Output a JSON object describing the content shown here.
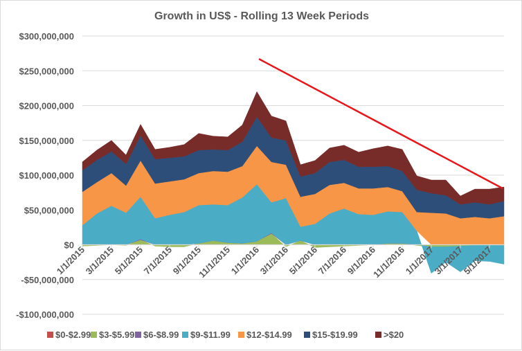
{
  "chart_data": {
    "type": "area",
    "stacked": true,
    "title": "Growth in US$ - Rolling 13 Week Periods",
    "xlabel": "",
    "ylabel": "",
    "ylim": [
      -100000000,
      300000000
    ],
    "y_ticks": [
      300000000,
      250000000,
      200000000,
      150000000,
      100000000,
      50000000,
      0,
      -50000000,
      -100000000
    ],
    "y_tick_labels": [
      "$300,000,000",
      "$250,000,000",
      "$200,000,000",
      "$150,000,000",
      "$100,000,000",
      "$50,000,000",
      "$0",
      "-$50,000,000",
      "-$100,000,000"
    ],
    "x_tick_labels": [
      "1/1/2015",
      "3/1/2015",
      "5/1/2015",
      "7/1/2015",
      "9/1/2015",
      "11/1/2015",
      "1/1/2016",
      "3/1/2016",
      "5/1/2016",
      "7/1/2016",
      "9/1/2016",
      "11/1/2016",
      "1/1/2017",
      "3/1/2017",
      "5/1/2017"
    ],
    "x": [
      "1/2015",
      "2/2015",
      "3/2015",
      "4/2015",
      "5/2015",
      "6/2015",
      "7/2015",
      "8/2015",
      "9/2015",
      "10/2015",
      "11/2015",
      "12/2015",
      "1/2016",
      "2/2016",
      "3/2016",
      "4/2016",
      "5/2016",
      "6/2016",
      "7/2016",
      "8/2016",
      "9/2016",
      "10/2016",
      "11/2016",
      "12/2016",
      "1/2017",
      "2/2017",
      "3/2017",
      "4/2017",
      "5/2017",
      "6/2017"
    ],
    "grid": true,
    "legend_position": "bottom",
    "series": [
      {
        "name": "$0-$2.99",
        "color": "#C0504D",
        "values": [
          0,
          0,
          0,
          0,
          0,
          0,
          0,
          0,
          0,
          0,
          0,
          0,
          0,
          0,
          0,
          0,
          0,
          0,
          0,
          0,
          0,
          0,
          0,
          0,
          0,
          0,
          0,
          0,
          0,
          0
        ]
      },
      {
        "name": "$3-$5.99",
        "color": "#9BBB59",
        "values": [
          -2000000,
          -1000000,
          0,
          -1000000,
          7000000,
          -2000000,
          -3000000,
          -3000000,
          2000000,
          6000000,
          3000000,
          2000000,
          5000000,
          16000000,
          -3000000,
          6000000,
          -4000000,
          -3000000,
          -2000000,
          -1000000,
          0,
          2000000,
          2000000,
          -1000000,
          -3000000,
          -3000000,
          -2000000,
          -1000000,
          -1000000,
          -1000000
        ]
      },
      {
        "name": "$6-$8.99",
        "color": "#8064A2",
        "values": [
          0,
          0,
          0,
          0,
          1000000,
          0,
          0,
          0,
          0,
          0,
          0,
          0,
          0,
          1000000,
          0,
          0,
          0,
          0,
          0,
          0,
          0,
          0,
          0,
          0,
          0,
          0,
          0,
          0,
          0,
          0
        ]
      },
      {
        "name": "$9-$11.99",
        "color": "#4BACC6",
        "values": [
          28000000,
          45000000,
          56000000,
          46000000,
          61000000,
          38000000,
          43000000,
          47000000,
          55000000,
          52000000,
          54000000,
          66000000,
          82000000,
          44000000,
          67000000,
          20000000,
          30000000,
          45000000,
          52000000,
          44000000,
          43000000,
          46000000,
          45000000,
          20000000,
          -38000000,
          -22000000,
          -37000000,
          -22000000,
          -23000000,
          -27000000
        ]
      },
      {
        "name": "$12-$14.99",
        "color": "#F79646",
        "values": [
          48000000,
          45000000,
          47000000,
          39000000,
          52000000,
          50000000,
          48000000,
          47000000,
          46000000,
          48000000,
          48000000,
          45000000,
          55000000,
          58000000,
          48000000,
          43000000,
          43000000,
          41000000,
          37000000,
          37000000,
          38000000,
          35000000,
          30000000,
          27000000,
          46000000,
          45000000,
          38000000,
          40000000,
          38000000,
          41000000
        ]
      },
      {
        "name": "$15-$19.99",
        "color": "#2E4E7A",
        "values": [
          31000000,
          32000000,
          31000000,
          31000000,
          36000000,
          35000000,
          34000000,
          33000000,
          33000000,
          31000000,
          31000000,
          35000000,
          42000000,
          35000000,
          35000000,
          29000000,
          30000000,
          33000000,
          33000000,
          31000000,
          31000000,
          30000000,
          29000000,
          32000000,
          28000000,
          26000000,
          20000000,
          21000000,
          20000000,
          22000000
        ]
      },
      {
        "name": ">$20",
        "color": "#772C2A",
        "values": [
          12000000,
          14000000,
          16000000,
          13000000,
          16000000,
          14000000,
          15000000,
          17000000,
          24000000,
          19000000,
          19000000,
          24000000,
          36000000,
          31000000,
          28000000,
          17000000,
          18000000,
          20000000,
          21000000,
          21000000,
          26000000,
          29000000,
          31000000,
          20000000,
          19000000,
          22000000,
          12000000,
          19000000,
          22000000,
          20000000
        ]
      }
    ],
    "annotations": [
      {
        "type": "trend-line",
        "color": "#E8161B",
        "from": {
          "x": "~12/2015",
          "y": 267000000
        },
        "to": {
          "x": "6/2017",
          "y": 81000000
        }
      }
    ]
  }
}
